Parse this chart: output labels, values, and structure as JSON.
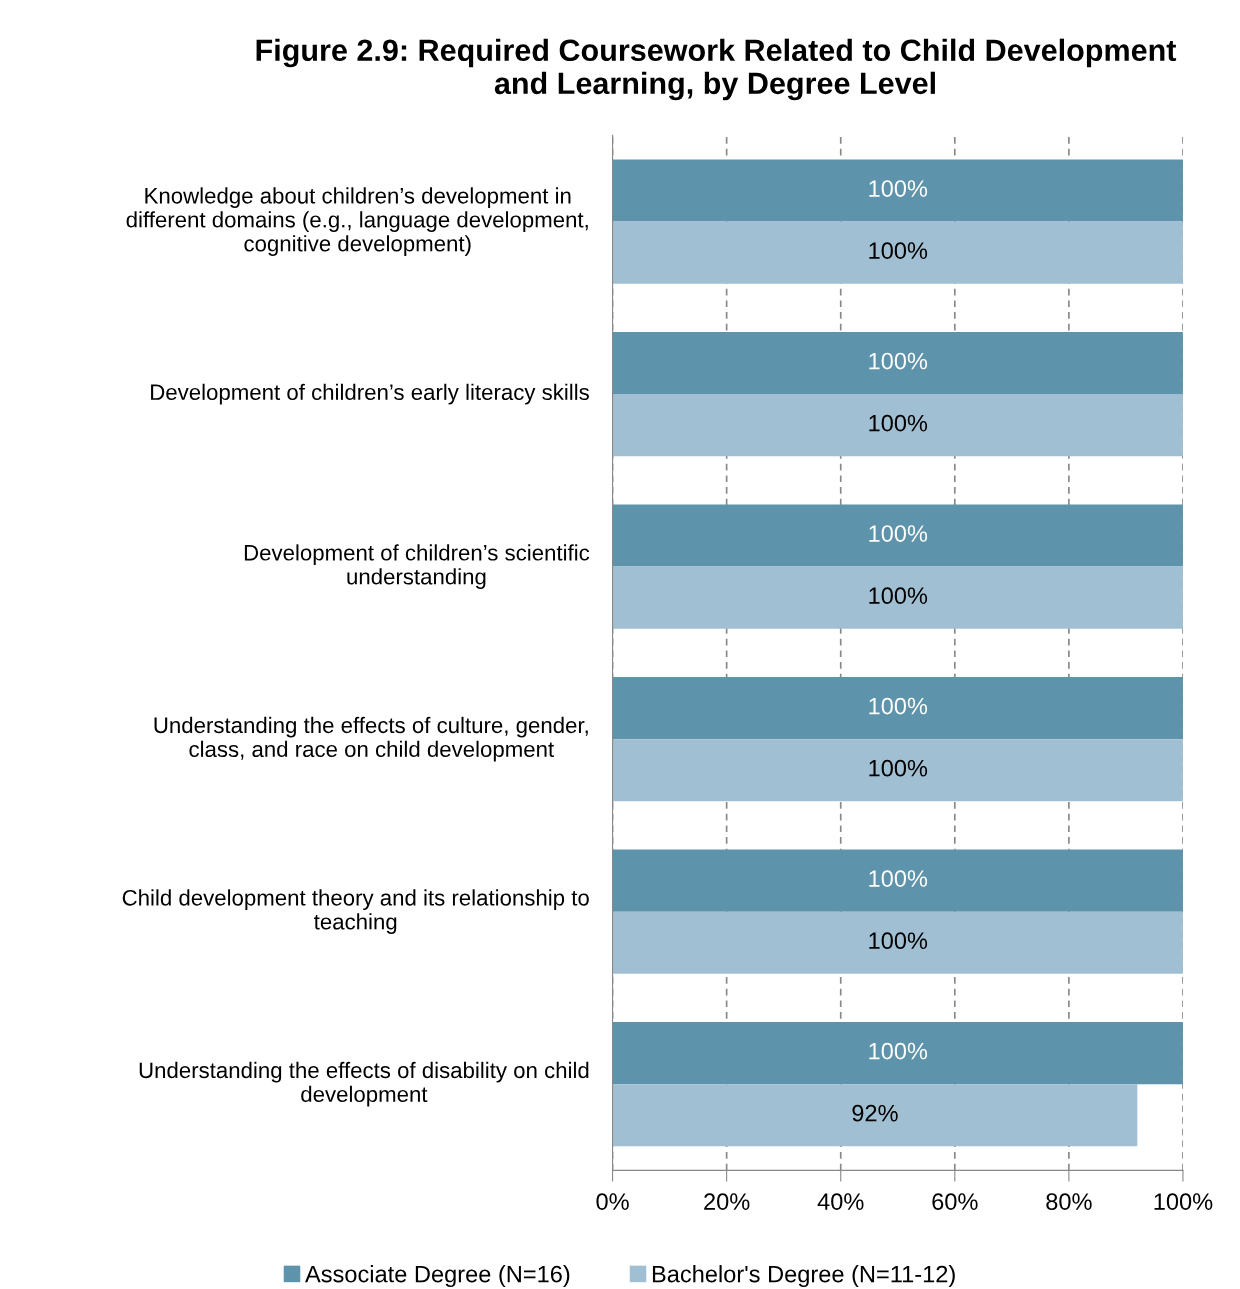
{
  "chart_data": {
    "type": "bar",
    "orientation": "horizontal",
    "title": "Figure 2.9: Required Coursework Related to Child Development\nand Learning, by Degree Level",
    "categories": [
      "Knowledge about children’s development in\ndifferent domains (e.g., language development,\ncognitive development)",
      "Development of children’s early literacy skills",
      "Development of children’s scientific\nunderstanding",
      "Understanding the effects of culture, gender,\nclass, and race on child development",
      "Child development theory and its relationship to\nteaching",
      "Understanding the effects of disability on child\ndevelopment"
    ],
    "series": [
      {
        "name": "Associate Degree (N=16)",
        "color": "#5d93ab",
        "values": [
          100,
          100,
          100,
          100,
          100,
          100
        ],
        "value_labels": [
          "100%",
          "100%",
          "100%",
          "100%",
          "100%",
          "100%"
        ]
      },
      {
        "name": "Bachelor's Degree (N=11-12)",
        "color": "#a0bfd2",
        "values": [
          100,
          100,
          100,
          100,
          100,
          92
        ],
        "value_labels": [
          "100%",
          "100%",
          "100%",
          "100%",
          "100%",
          "92%"
        ]
      }
    ],
    "xlim": [
      0,
      100
    ],
    "xticks": [
      {
        "value": 0,
        "label": "0%"
      },
      {
        "value": 20,
        "label": "20%"
      },
      {
        "value": 40,
        "label": "40%"
      },
      {
        "value": 60,
        "label": "60%"
      },
      {
        "value": 80,
        "label": "80%"
      },
      {
        "value": 100,
        "label": "100%"
      }
    ],
    "grid": "x",
    "legend": "bottom"
  }
}
